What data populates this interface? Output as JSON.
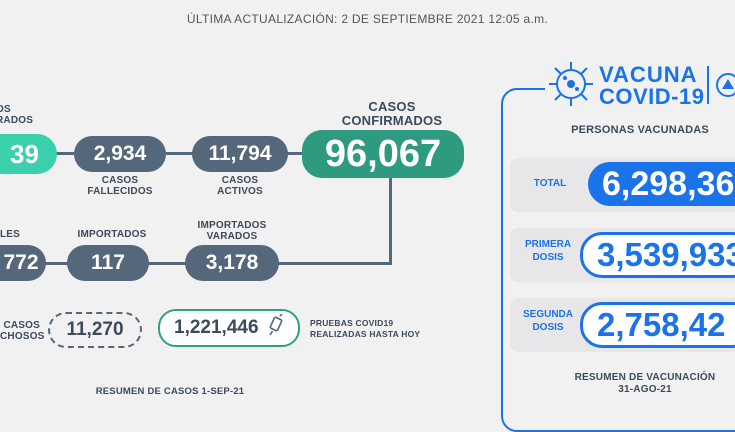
{
  "update": {
    "text": "ÚLTIMA ACTUALIZACIÓN: 2 DE SEPTIEMBRE 2021 12:05 a.m."
  },
  "cases": {
    "recovered_label": "OS\nRADOS",
    "recovered_value": "39",
    "fallecidos_value": "2,934",
    "fallecidos_label": "CASOS\nFALLECIDOS",
    "activos_value": "11,794",
    "activos_label": "CASOS\nACTIVOS",
    "confirmados_label": "CASOS\nCONFIRMADOS",
    "confirmados_value": "96,067",
    "locales_label": "LES",
    "locales_value": "772",
    "importados_label": "IMPORTADOS",
    "importados_value": "117",
    "varados_label": "IMPORTADOS\nVARADOS",
    "varados_value": "3,178",
    "sospechosos_label": "CASOS\nCHOSOS",
    "sospechosos_value": "11,270",
    "pruebas_value": "1,221,446",
    "pruebas_label": "PRUEBAS COVID19\nREALIZADAS HASTA HOY",
    "resumen": "RESUMEN DE CASOS 1-SEP-21"
  },
  "vaccine": {
    "logo_word1": "VACUNA",
    "logo_word2": "COVID-19",
    "personas_label": "PERSONAS VACUNADAS",
    "total_label": "TOTAL",
    "total_value": "6,298,36",
    "primera_label": "PRIMERA\nDOSIS",
    "primera_value": "3,539,933",
    "segunda_label": "SEGUNDA\nDOSIS",
    "segunda_value": "2,758,42",
    "resumen": "RESUMEN DE VACUNACIÓN\n31-AGO-21"
  },
  "colors": {
    "slate": "#55677a",
    "green": "#2e9b80",
    "mint": "#3ccfab",
    "blue": "#1a73e8"
  },
  "icons": [
    "virus-icon",
    "syringe-icon",
    "coat-of-arms-icon"
  ]
}
